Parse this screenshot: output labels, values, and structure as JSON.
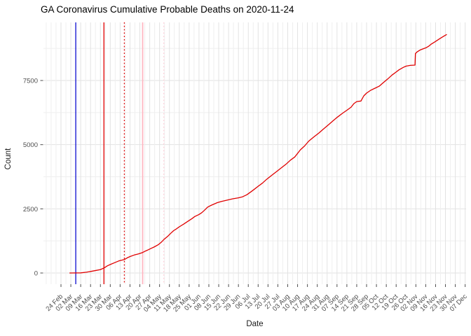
{
  "chart_data": {
    "type": "line",
    "title": "GA Coronavirus Cumulative Probable Deaths on 2020-11-24",
    "xlabel": "Date",
    "ylabel": "Count",
    "legend": "none",
    "grid": true,
    "x_axis": {
      "unit": "days since 2020-02-24",
      "tick_interval_days": 7,
      "tick_labels": [
        "24 Feb",
        "02 Mar",
        "09 Mar",
        "16 Mar",
        "23 Mar",
        "30 Mar",
        "06 Apr",
        "13 Apr",
        "20 Apr",
        "27 Apr",
        "04 May",
        "11 May",
        "18 May",
        "25 May",
        "01 Jun",
        "08 Jun",
        "15 Jun",
        "22 Jun",
        "29 Jun",
        "06 Jul",
        "13 Jul",
        "20 Jul",
        "27 Jul",
        "03 Aug",
        "10 Aug",
        "17 Aug",
        "24 Aug",
        "31 Aug",
        "07 Sep",
        "14 Sep",
        "21 Sep",
        "28 Sep",
        "05 Oct",
        "12 Oct",
        "19 Oct",
        "26 Oct",
        "02 Nov",
        "09 Nov",
        "16 Nov",
        "23 Nov",
        "30 Nov",
        "07 Dec"
      ]
    },
    "y_axis": {
      "ticks": [
        0,
        2500,
        5000,
        7500
      ],
      "minor_ticks": [
        1250,
        3750,
        6250,
        8750
      ],
      "ylim": [
        0,
        9765
      ]
    },
    "series": [
      {
        "name": "cumulative probable deaths",
        "color": "#e00000",
        "final_value": 9295,
        "points_day_value": [
          [
            6,
            0
          ],
          [
            14,
            5
          ],
          [
            18,
            30
          ],
          [
            21,
            60
          ],
          [
            25,
            100
          ],
          [
            28,
            135
          ],
          [
            31,
            210
          ],
          [
            33,
            280
          ],
          [
            35,
            330
          ],
          [
            38,
            400
          ],
          [
            41,
            470
          ],
          [
            45,
            525
          ],
          [
            47,
            590
          ],
          [
            49,
            640
          ],
          [
            52,
            700
          ],
          [
            55,
            745
          ],
          [
            58,
            800
          ],
          [
            60,
            855
          ],
          [
            62,
            905
          ],
          [
            64,
            960
          ],
          [
            66,
            1010
          ],
          [
            69,
            1100
          ],
          [
            71,
            1190
          ],
          [
            73,
            1300
          ],
          [
            76,
            1440
          ],
          [
            78,
            1550
          ],
          [
            80,
            1650
          ],
          [
            82,
            1720
          ],
          [
            84,
            1800
          ],
          [
            87,
            1900
          ],
          [
            90,
            2010
          ],
          [
            93,
            2120
          ],
          [
            95,
            2200
          ],
          [
            98,
            2280
          ],
          [
            100,
            2350
          ],
          [
            102,
            2450
          ],
          [
            104,
            2560
          ],
          [
            106,
            2620
          ],
          [
            108,
            2670
          ],
          [
            111,
            2740
          ],
          [
            114,
            2790
          ],
          [
            118,
            2840
          ],
          [
            122,
            2890
          ],
          [
            126,
            2930
          ],
          [
            129,
            2970
          ],
          [
            132,
            3050
          ],
          [
            135,
            3170
          ],
          [
            137,
            3250
          ],
          [
            140,
            3380
          ],
          [
            143,
            3500
          ],
          [
            146,
            3650
          ],
          [
            150,
            3820
          ],
          [
            153,
            3950
          ],
          [
            157,
            4120
          ],
          [
            160,
            4250
          ],
          [
            163,
            4400
          ],
          [
            166,
            4520
          ],
          [
            170,
            4800
          ],
          [
            173,
            4950
          ],
          [
            176,
            5140
          ],
          [
            180,
            5320
          ],
          [
            183,
            5450
          ],
          [
            186,
            5590
          ],
          [
            190,
            5780
          ],
          [
            193,
            5920
          ],
          [
            196,
            6060
          ],
          [
            200,
            6230
          ],
          [
            203,
            6340
          ],
          [
            206,
            6460
          ],
          [
            208,
            6600
          ],
          [
            210,
            6680
          ],
          [
            213,
            6700
          ],
          [
            215,
            6900
          ],
          [
            217,
            7010
          ],
          [
            220,
            7120
          ],
          [
            223,
            7200
          ],
          [
            226,
            7280
          ],
          [
            229,
            7420
          ],
          [
            232,
            7560
          ],
          [
            235,
            7710
          ],
          [
            238,
            7830
          ],
          [
            240,
            7915
          ],
          [
            243,
            8010
          ],
          [
            245,
            8060
          ],
          [
            248,
            8090
          ],
          [
            251.4,
            8100
          ],
          [
            251.7,
            8550
          ],
          [
            253,
            8620
          ],
          [
            255,
            8690
          ],
          [
            257,
            8730
          ],
          [
            259,
            8770
          ],
          [
            261,
            8830
          ],
          [
            263,
            8920
          ],
          [
            265,
            8990
          ],
          [
            267,
            9060
          ],
          [
            269,
            9130
          ],
          [
            271,
            9200
          ],
          [
            273,
            9265
          ],
          [
            274,
            9295
          ]
        ]
      }
    ],
    "vlines": [
      {
        "name": "vline-blue-solid",
        "style": "solid",
        "color": "#0b0bd0",
        "day": 10.5
      },
      {
        "name": "vline-red-solid",
        "style": "solid",
        "color": "#e00000",
        "day": 30.5
      },
      {
        "name": "vline-red-dotted",
        "style": "dotted",
        "color": "#e00000",
        "day": 45
      },
      {
        "name": "vline-pink-solid",
        "style": "solid",
        "color": "#ffb6c1",
        "day": 58
      },
      {
        "name": "vline-pink-dotted",
        "style": "dotted",
        "color": "#ffd0d9",
        "day": 73
      }
    ],
    "colors": {
      "major_grid": "#e2e2e2",
      "minor_grid": "#efefef",
      "tick_mark": "#4d4d4d",
      "tick_label": "#4d4d4d",
      "axis_title": "#1a1a1a"
    }
  }
}
